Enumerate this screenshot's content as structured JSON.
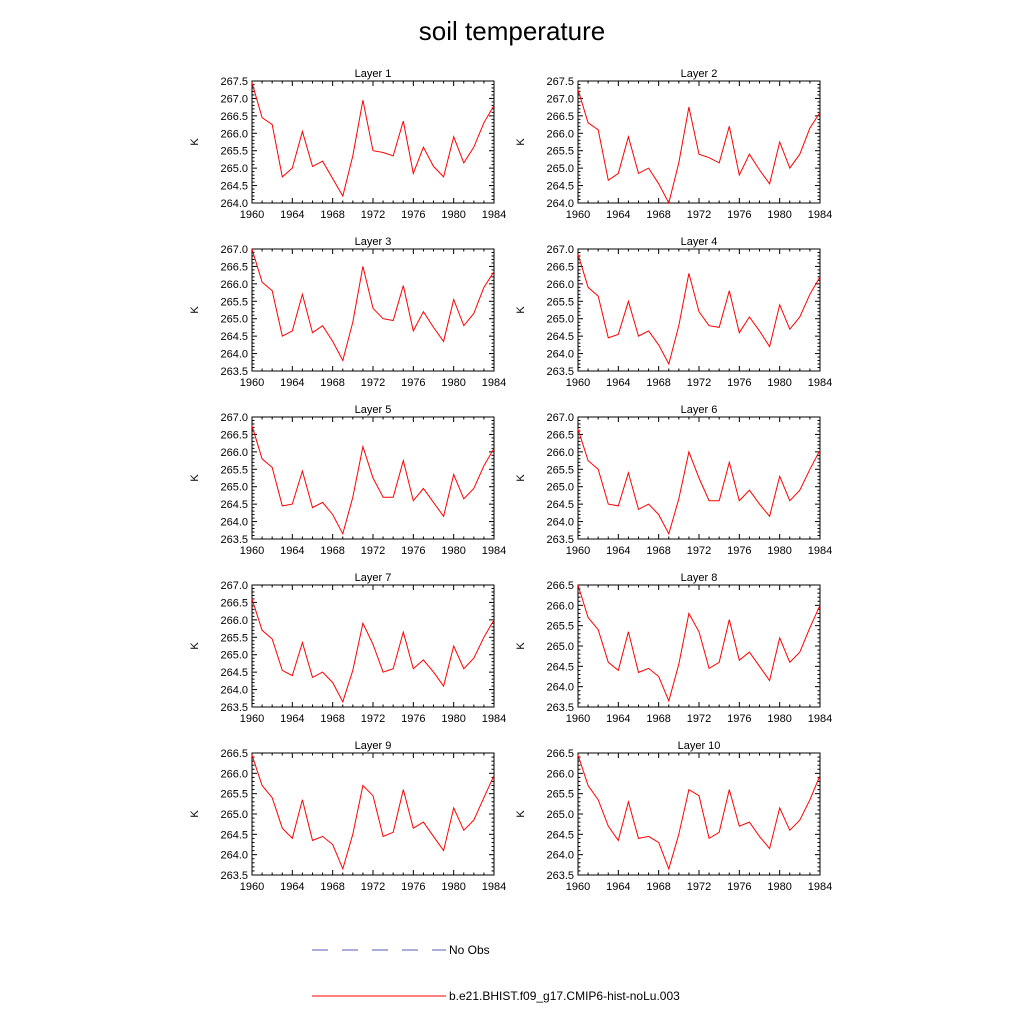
{
  "figure": {
    "title": "soil temperature",
    "colors": {
      "model_line": "#ff0000",
      "obs_line": "#5a5ab4",
      "axis": "#000000"
    }
  },
  "legend": [
    {
      "label": "No Obs",
      "style": "dashed",
      "color": "#5a5ab4"
    },
    {
      "label": "b.e21.BHIST.f09_g17.CMIP6-hist-noLu.003",
      "style": "solid",
      "color": "#ff0000"
    }
  ],
  "chart_data": [
    {
      "type": "line",
      "title": "Layer 1",
      "ylabel": "K",
      "xlim": [
        1960,
        1984
      ],
      "ylim": [
        264.0,
        267.5
      ],
      "xticks": [
        "1960",
        "1964",
        "1968",
        "1972",
        "1976",
        "1980",
        "1984"
      ],
      "yticks": [
        "264.0",
        "264.5",
        "265.0",
        "265.5",
        "266.0",
        "266.5",
        "267.0",
        "267.5"
      ],
      "x": [
        1960,
        1961,
        1962,
        1963,
        1964,
        1965,
        1966,
        1967,
        1968,
        1969,
        1970,
        1971,
        1972,
        1973,
        1974,
        1975,
        1976,
        1977,
        1978,
        1979,
        1980,
        1981,
        1982,
        1983,
        1984
      ],
      "series": [
        {
          "values": [
            267.45,
            266.45,
            266.25,
            264.75,
            265.0,
            266.05,
            265.05,
            265.2,
            264.7,
            264.2,
            265.35,
            266.95,
            265.5,
            265.45,
            265.35,
            266.35,
            264.85,
            265.6,
            265.05,
            264.75,
            265.9,
            265.15,
            265.6,
            266.3,
            266.8
          ]
        }
      ]
    },
    {
      "type": "line",
      "title": "Layer 2",
      "ylabel": "K",
      "xlim": [
        1960,
        1984
      ],
      "ylim": [
        264.0,
        267.5
      ],
      "xticks": [
        "1960",
        "1964",
        "1968",
        "1972",
        "1976",
        "1980",
        "1984"
      ],
      "yticks": [
        "264.0",
        "264.5",
        "265.0",
        "265.5",
        "266.0",
        "266.5",
        "267.0",
        "267.5"
      ],
      "x": [
        1960,
        1961,
        1962,
        1963,
        1964,
        1965,
        1966,
        1967,
        1968,
        1969,
        1970,
        1971,
        1972,
        1973,
        1974,
        1975,
        1976,
        1977,
        1978,
        1979,
        1980,
        1981,
        1982,
        1983,
        1984
      ],
      "series": [
        {
          "values": [
            267.25,
            266.3,
            266.1,
            264.65,
            264.85,
            265.9,
            264.85,
            265.0,
            264.55,
            264.0,
            265.15,
            266.75,
            265.4,
            265.3,
            265.15,
            266.2,
            264.8,
            265.4,
            264.95,
            264.55,
            265.75,
            265.0,
            265.4,
            266.15,
            266.6
          ]
        }
      ]
    },
    {
      "type": "line",
      "title": "Layer 3",
      "ylabel": "K",
      "xlim": [
        1960,
        1984
      ],
      "ylim": [
        263.5,
        267.0
      ],
      "xticks": [
        "1960",
        "1964",
        "1968",
        "1972",
        "1976",
        "1980",
        "1984"
      ],
      "yticks": [
        "263.5",
        "264.0",
        "264.5",
        "265.0",
        "265.5",
        "266.0",
        "266.5",
        "267.0"
      ],
      "x": [
        1960,
        1961,
        1962,
        1963,
        1964,
        1965,
        1966,
        1967,
        1968,
        1969,
        1970,
        1971,
        1972,
        1973,
        1974,
        1975,
        1976,
        1977,
        1978,
        1979,
        1980,
        1981,
        1982,
        1983,
        1984
      ],
      "series": [
        {
          "values": [
            267.0,
            266.05,
            265.8,
            264.5,
            264.65,
            265.7,
            264.6,
            264.8,
            264.35,
            263.8,
            264.9,
            266.5,
            265.3,
            265.0,
            264.95,
            265.95,
            264.65,
            265.2,
            264.75,
            264.35,
            265.55,
            264.8,
            265.15,
            265.9,
            266.35
          ]
        }
      ]
    },
    {
      "type": "line",
      "title": "Layer 4",
      "ylabel": "K",
      "xlim": [
        1960,
        1984
      ],
      "ylim": [
        263.5,
        267.0
      ],
      "xticks": [
        "1960",
        "1964",
        "1968",
        "1972",
        "1976",
        "1980",
        "1984"
      ],
      "yticks": [
        "263.5",
        "264.0",
        "264.5",
        "265.0",
        "265.5",
        "266.0",
        "266.5",
        "267.0"
      ],
      "x": [
        1960,
        1961,
        1962,
        1963,
        1964,
        1965,
        1966,
        1967,
        1968,
        1969,
        1970,
        1971,
        1972,
        1973,
        1974,
        1975,
        1976,
        1977,
        1978,
        1979,
        1980,
        1981,
        1982,
        1983,
        1984
      ],
      "series": [
        {
          "values": [
            266.85,
            265.9,
            265.65,
            264.45,
            264.55,
            265.5,
            264.5,
            264.65,
            264.25,
            263.7,
            264.8,
            266.3,
            265.2,
            264.8,
            264.75,
            265.8,
            264.6,
            265.05,
            264.65,
            264.2,
            265.4,
            264.7,
            265.05,
            265.7,
            266.2
          ]
        }
      ]
    },
    {
      "type": "line",
      "title": "Layer 5",
      "ylabel": "K",
      "xlim": [
        1960,
        1984
      ],
      "ylim": [
        263.5,
        267.0
      ],
      "xticks": [
        "1960",
        "1964",
        "1968",
        "1972",
        "1976",
        "1980",
        "1984"
      ],
      "yticks": [
        "263.5",
        "264.0",
        "264.5",
        "265.0",
        "265.5",
        "266.0",
        "266.5",
        "267.0"
      ],
      "x": [
        1960,
        1961,
        1962,
        1963,
        1964,
        1965,
        1966,
        1967,
        1968,
        1969,
        1970,
        1971,
        1972,
        1973,
        1974,
        1975,
        1976,
        1977,
        1978,
        1979,
        1980,
        1981,
        1982,
        1983,
        1984
      ],
      "series": [
        {
          "values": [
            266.75,
            265.8,
            265.55,
            264.45,
            264.5,
            265.45,
            264.4,
            264.55,
            264.2,
            263.65,
            264.7,
            266.15,
            265.25,
            264.7,
            264.7,
            265.75,
            264.6,
            264.95,
            264.55,
            264.15,
            265.35,
            264.65,
            264.95,
            265.6,
            266.1
          ]
        }
      ]
    },
    {
      "type": "line",
      "title": "Layer 6",
      "ylabel": "K",
      "xlim": [
        1960,
        1984
      ],
      "ylim": [
        263.5,
        267.0
      ],
      "xticks": [
        "1960",
        "1964",
        "1968",
        "1972",
        "1976",
        "1980",
        "1984"
      ],
      "yticks": [
        "263.5",
        "264.0",
        "264.5",
        "265.0",
        "265.5",
        "266.0",
        "266.5",
        "267.0"
      ],
      "x": [
        1960,
        1961,
        1962,
        1963,
        1964,
        1965,
        1966,
        1967,
        1968,
        1969,
        1970,
        1971,
        1972,
        1973,
        1974,
        1975,
        1976,
        1977,
        1978,
        1979,
        1980,
        1981,
        1982,
        1983,
        1984
      ],
      "series": [
        {
          "values": [
            266.65,
            265.75,
            265.5,
            264.5,
            264.45,
            265.4,
            264.35,
            264.5,
            264.2,
            263.65,
            264.65,
            266.0,
            265.25,
            264.6,
            264.6,
            265.7,
            264.6,
            264.9,
            264.5,
            264.15,
            265.3,
            264.6,
            264.9,
            265.5,
            266.05
          ]
        }
      ]
    },
    {
      "type": "line",
      "title": "Layer 7",
      "ylabel": "K",
      "xlim": [
        1960,
        1984
      ],
      "ylim": [
        263.5,
        267.0
      ],
      "xticks": [
        "1960",
        "1964",
        "1968",
        "1972",
        "1976",
        "1980",
        "1984"
      ],
      "yticks": [
        "263.5",
        "264.0",
        "264.5",
        "265.0",
        "265.5",
        "266.0",
        "266.5",
        "267.0"
      ],
      "x": [
        1960,
        1961,
        1962,
        1963,
        1964,
        1965,
        1966,
        1967,
        1968,
        1969,
        1970,
        1971,
        1972,
        1973,
        1974,
        1975,
        1976,
        1977,
        1978,
        1979,
        1980,
        1981,
        1982,
        1983,
        1984
      ],
      "series": [
        {
          "values": [
            266.6,
            265.7,
            265.45,
            264.55,
            264.4,
            265.35,
            264.35,
            264.5,
            264.2,
            263.65,
            264.55,
            265.9,
            265.3,
            264.5,
            264.6,
            265.65,
            264.6,
            264.85,
            264.5,
            264.1,
            265.25,
            264.6,
            264.9,
            265.5,
            266.0
          ]
        }
      ]
    },
    {
      "type": "line",
      "title": "Layer 8",
      "ylabel": "K",
      "xlim": [
        1960,
        1984
      ],
      "ylim": [
        263.5,
        266.5
      ],
      "xticks": [
        "1960",
        "1964",
        "1968",
        "1972",
        "1976",
        "1980",
        "1984"
      ],
      "yticks": [
        "263.5",
        "264.0",
        "264.5",
        "265.0",
        "265.5",
        "266.0",
        "266.5"
      ],
      "x": [
        1960,
        1961,
        1962,
        1963,
        1964,
        1965,
        1966,
        1967,
        1968,
        1969,
        1970,
        1971,
        1972,
        1973,
        1974,
        1975,
        1976,
        1977,
        1978,
        1979,
        1980,
        1981,
        1982,
        1983,
        1984
      ],
      "series": [
        {
          "values": [
            266.5,
            265.7,
            265.4,
            264.6,
            264.4,
            265.35,
            264.35,
            264.45,
            264.25,
            263.65,
            264.55,
            265.8,
            265.35,
            264.45,
            264.6,
            265.65,
            264.65,
            264.85,
            264.5,
            264.15,
            265.2,
            264.6,
            264.85,
            265.45,
            266.0
          ]
        }
      ]
    },
    {
      "type": "line",
      "title": "Layer 9",
      "ylabel": "K",
      "xlim": [
        1960,
        1984
      ],
      "ylim": [
        263.5,
        266.5
      ],
      "xticks": [
        "1960",
        "1964",
        "1968",
        "1972",
        "1976",
        "1980",
        "1984"
      ],
      "yticks": [
        "263.5",
        "264.0",
        "264.5",
        "265.0",
        "265.5",
        "266.0",
        "266.5"
      ],
      "x": [
        1960,
        1961,
        1962,
        1963,
        1964,
        1965,
        1966,
        1967,
        1968,
        1969,
        1970,
        1971,
        1972,
        1973,
        1974,
        1975,
        1976,
        1977,
        1978,
        1979,
        1980,
        1981,
        1982,
        1983,
        1984
      ],
      "series": [
        {
          "values": [
            266.45,
            265.7,
            265.4,
            264.65,
            264.4,
            265.35,
            264.35,
            264.45,
            264.25,
            263.65,
            264.5,
            265.7,
            265.45,
            264.45,
            264.55,
            265.6,
            264.65,
            264.8,
            264.45,
            264.1,
            265.15,
            264.6,
            264.85,
            265.4,
            265.95
          ]
        }
      ]
    },
    {
      "type": "line",
      "title": "Layer 10",
      "ylabel": "K",
      "xlim": [
        1960,
        1984
      ],
      "ylim": [
        263.5,
        266.5
      ],
      "xticks": [
        "1960",
        "1964",
        "1968",
        "1972",
        "1976",
        "1980",
        "1984"
      ],
      "yticks": [
        "263.5",
        "264.0",
        "264.5",
        "265.0",
        "265.5",
        "266.0",
        "266.5"
      ],
      "x": [
        1960,
        1961,
        1962,
        1963,
        1964,
        1965,
        1966,
        1967,
        1968,
        1969,
        1970,
        1971,
        1972,
        1973,
        1974,
        1975,
        1976,
        1977,
        1978,
        1979,
        1980,
        1981,
        1982,
        1983,
        1984
      ],
      "series": [
        {
          "values": [
            266.45,
            265.7,
            265.35,
            264.7,
            264.35,
            265.3,
            264.4,
            264.45,
            264.3,
            263.65,
            264.5,
            265.6,
            265.45,
            264.4,
            264.55,
            265.6,
            264.7,
            264.8,
            264.45,
            264.15,
            265.15,
            264.6,
            264.85,
            265.35,
            265.95
          ]
        }
      ]
    }
  ]
}
